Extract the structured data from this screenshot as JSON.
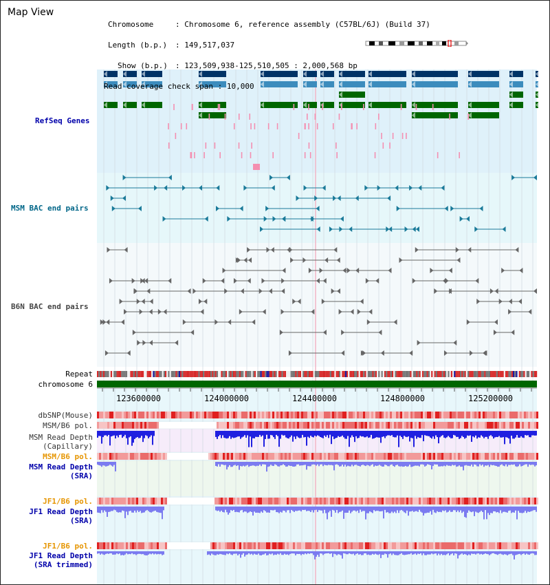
{
  "title": "Map View",
  "info": {
    "chromosome_label": "Chromosome",
    "chromosome_value": "Chromosome 6, reference assembly (C57BL/6J) (Build 37)",
    "length_label": "Length (b.p.)",
    "length_value": "149,517,037",
    "show_label": "Show (b.p.)",
    "show_value": "123,509,938-125,510,505 : 2,000,568 bp",
    "span_label": "Read coverage check span",
    "span_value": "10,000"
  },
  "tracks": {
    "refseq": "RefSeq Genes",
    "msm_bac": "MSM BAC end pairs",
    "b6n_bac": "B6N BAC end pairs",
    "repeat": "Repeat",
    "chromosome": "chromosome 6",
    "dbsnp": "dbSNP(Mouse)",
    "msm_b6_pol_1": "MSM/B6 pol.",
    "msm_depth_cap_1": "MSM Read Depth",
    "msm_depth_cap_2": "(Capillary)",
    "msm_b6_pol_2": "MSM/B6 pol.",
    "msm_depth_sra_1": "MSM Read Depth",
    "msm_depth_sra_2": "(SRA)",
    "jf1_pol_1": "JF1/B6 pol.",
    "jf1_depth_1": "JF1 Read Depth",
    "jf1_depth_2": "(SRA)",
    "jf1_pol_2": "JF1/B6 pol.",
    "jf1_trim_1": "JF1 Read Depth",
    "jf1_trim_2": "(SRA trimmed)"
  },
  "ruler": {
    "ticks": [
      "123600000",
      "124000000",
      "124400000",
      "124800000",
      "125200000"
    ]
  },
  "colors": {
    "refseq_bg": "#dff1fa",
    "msm_bg": "#e6f7fa",
    "b6n_bg": "#f4f9fb",
    "gene_dark": "#003366",
    "gene_mid": "#3c8cbd",
    "gene_green": "#006600",
    "gene_pink": "#f48fb1",
    "msm_pair": "#1a7a99",
    "b6n_pair": "#666666",
    "depth_blue": "#2b2bf0",
    "depth_light": "#7b7bf0",
    "pol_red": "#e53333",
    "chrom_green": "#006600"
  }
}
